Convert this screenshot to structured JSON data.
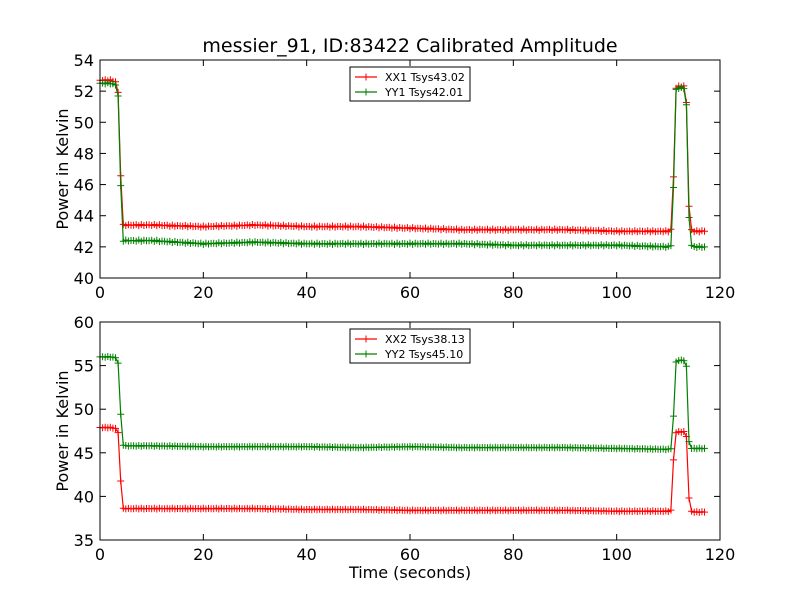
{
  "chart_data": [
    {
      "type": "line",
      "title": "messier_91, ID:83422 Calibrated Amplitude",
      "xlabel": "",
      "ylabel": "Power in Kelvin",
      "xlim": [
        0,
        120
      ],
      "ylim": [
        40,
        54
      ],
      "xticks": [
        0,
        20,
        40,
        60,
        80,
        100,
        120
      ],
      "yticks": [
        40,
        42,
        44,
        46,
        48,
        50,
        52,
        54
      ],
      "legend_position": "top-center",
      "series": [
        {
          "name": "XX1 Tsys43.02",
          "color": "#ff0000",
          "x": [
            0,
            1,
            2,
            3,
            3.5,
            4,
            4.5,
            5,
            10,
            20,
            30,
            40,
            50,
            60,
            70,
            80,
            90,
            100,
            110,
            110.5,
            111,
            111.5,
            112,
            113,
            113.5,
            114,
            114.5,
            115,
            116,
            117
          ],
          "y": [
            52.7,
            52.7,
            52.7,
            52.6,
            51.9,
            46.6,
            43.4,
            43.4,
            43.4,
            43.3,
            43.4,
            43.3,
            43.3,
            43.2,
            43.1,
            43.1,
            43.1,
            43.0,
            43.0,
            43.1,
            46.5,
            52.2,
            52.3,
            52.3,
            51.3,
            44.6,
            43.1,
            43.0,
            43.0,
            43.0
          ]
        },
        {
          "name": "YY1 Tsys42.01",
          "color": "#008000",
          "x": [
            0,
            1,
            2,
            3,
            3.5,
            4,
            4.5,
            5,
            10,
            20,
            30,
            40,
            50,
            60,
            70,
            80,
            90,
            100,
            110,
            110.5,
            111,
            111.5,
            112,
            113,
            113.5,
            114,
            114.5,
            115,
            116,
            117
          ],
          "y": [
            52.5,
            52.5,
            52.5,
            52.4,
            51.7,
            45.9,
            42.4,
            42.4,
            42.4,
            42.2,
            42.3,
            42.2,
            42.2,
            42.2,
            42.2,
            42.1,
            42.1,
            42.1,
            42.0,
            42.1,
            45.8,
            52.1,
            52.2,
            52.2,
            51.1,
            43.9,
            42.1,
            42.0,
            42.0,
            42.0
          ]
        }
      ]
    },
    {
      "type": "line",
      "title": "",
      "xlabel": "Time (seconds)",
      "ylabel": "Power in Kelvin",
      "xlim": [
        0,
        120
      ],
      "ylim": [
        35,
        60
      ],
      "xticks": [
        0,
        20,
        40,
        60,
        80,
        100,
        120
      ],
      "yticks": [
        35,
        40,
        45,
        50,
        55,
        60
      ],
      "legend_position": "top-center",
      "series": [
        {
          "name": "XX2 Tsys38.13",
          "color": "#ff0000",
          "x": [
            0,
            1,
            2,
            3,
            3.5,
            4,
            4.5,
            5,
            10,
            20,
            30,
            40,
            50,
            60,
            70,
            80,
            90,
            100,
            110,
            110.5,
            111,
            111.5,
            112,
            113,
            113.5,
            114,
            114.5,
            115,
            116,
            117
          ],
          "y": [
            47.9,
            47.9,
            47.9,
            47.8,
            47.3,
            41.8,
            38.6,
            38.6,
            38.6,
            38.6,
            38.6,
            38.5,
            38.5,
            38.4,
            38.4,
            38.4,
            38.4,
            38.3,
            38.3,
            38.4,
            44.2,
            47.3,
            47.4,
            47.4,
            46.9,
            39.8,
            38.3,
            38.2,
            38.2,
            38.2
          ]
        },
        {
          "name": "YY2 Tsys45.10",
          "color": "#008000",
          "x": [
            0,
            1,
            2,
            3,
            3.5,
            4,
            4.5,
            5,
            10,
            20,
            30,
            40,
            50,
            60,
            70,
            80,
            90,
            100,
            110,
            110.5,
            111,
            111.5,
            112,
            113,
            113.5,
            114,
            114.5,
            115,
            116,
            117
          ],
          "y": [
            56.0,
            56.0,
            56.0,
            55.9,
            55.3,
            49.4,
            45.9,
            45.8,
            45.8,
            45.7,
            45.7,
            45.7,
            45.6,
            45.7,
            45.6,
            45.6,
            45.6,
            45.5,
            45.4,
            45.5,
            49.2,
            55.4,
            55.6,
            55.6,
            54.9,
            46.3,
            45.5,
            45.5,
            45.5,
            45.5
          ]
        }
      ]
    }
  ]
}
